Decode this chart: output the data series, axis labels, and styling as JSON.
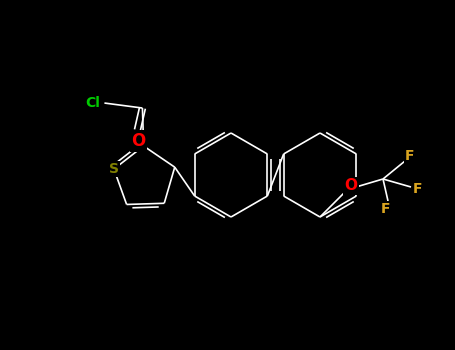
{
  "background_color": "#000000",
  "bond_color": "#ffffff",
  "atom_colors": {
    "S": "#808000",
    "O": "#ff0000",
    "F": "#DAA520",
    "Cl": "#00cc00",
    "O_carbonyl": "#ff0000"
  },
  "figsize": [
    4.55,
    3.5
  ],
  "dpi": 100
}
